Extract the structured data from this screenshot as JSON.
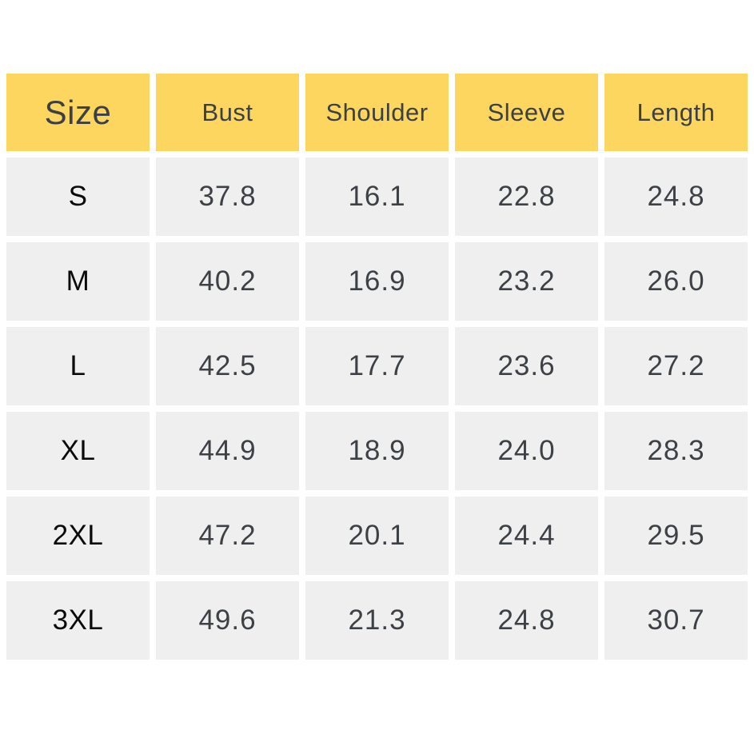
{
  "colors": {
    "background": "#FFFFFF",
    "header_bg": "#FCD65E",
    "cell_bg": "#EFEFEF",
    "header_text": "#3C4045",
    "value_text": "#3D4145",
    "size_text": "#0A0A0A"
  },
  "chart_data": {
    "type": "table",
    "columns": [
      "Size",
      "Bust",
      "Shoulder",
      "Sleeve",
      "Length"
    ],
    "rows": [
      [
        "S",
        "37.8",
        "16.1",
        "22.8",
        "24.8"
      ],
      [
        "M",
        "40.2",
        "16.9",
        "23.2",
        "26.0"
      ],
      [
        "L",
        "42.5",
        "17.7",
        "23.6",
        "27.2"
      ],
      [
        "XL",
        "44.9",
        "18.9",
        "24.0",
        "28.3"
      ],
      [
        "2XL",
        "47.2",
        "20.1",
        "24.4",
        "29.5"
      ],
      [
        "3XL",
        "49.6",
        "21.3",
        "24.8",
        "30.7"
      ]
    ]
  }
}
